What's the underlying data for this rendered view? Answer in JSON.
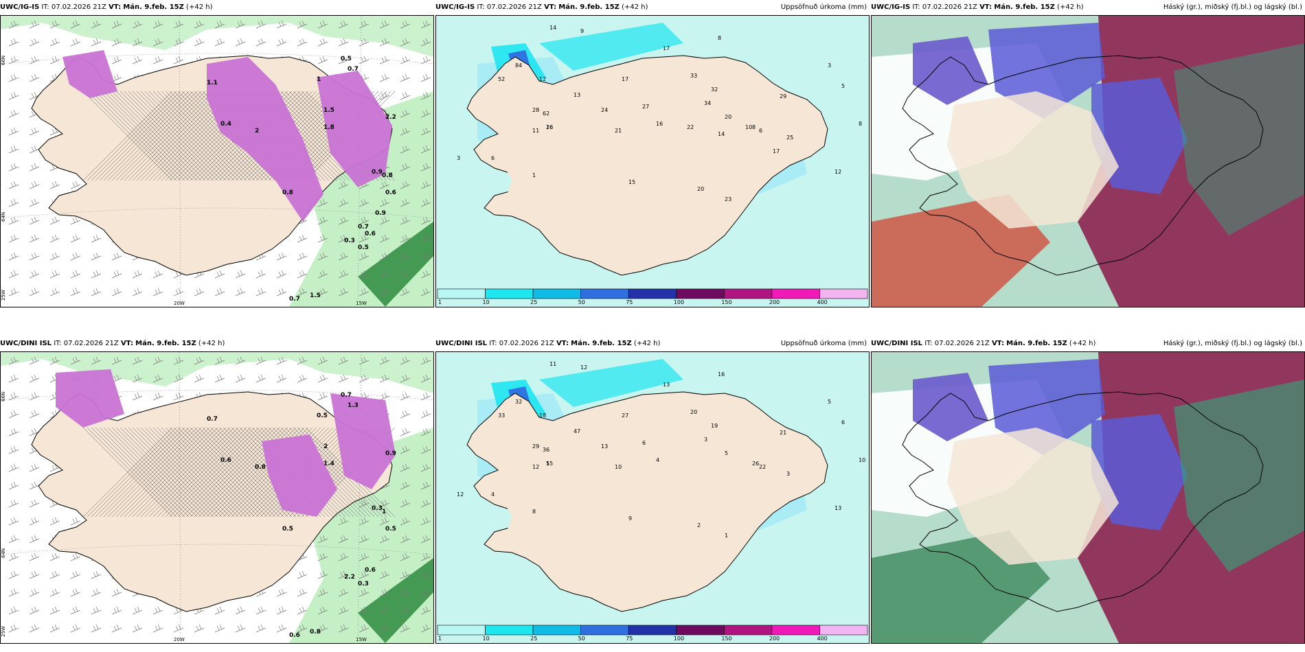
{
  "top": {
    "p1": {
      "model": "UWC/IG-IS",
      "it_label": "IT:",
      "it": "07.02.2026 21Z",
      "vt_label": "VT:",
      "vt": "Mán. 9.feb. 15Z",
      "lead": "(+42 h)",
      "values": [
        "0.5",
        "0.7",
        "1",
        "1.5",
        "1.8",
        "2.2",
        "0.7",
        "1.5",
        "0.9",
        "0.6",
        "0.3",
        "0.8",
        "1.1",
        "0.4",
        "2",
        "0.8",
        "0.6",
        "0.5",
        "0.9",
        "0.7"
      ]
    },
    "p2": {
      "model": "UWC/IG-IS",
      "it_label": "IT:",
      "it": "07.02.2026 21Z",
      "vt_label": "VT:",
      "vt": "Mán. 9.feb. 15Z",
      "lead": "(+42 h)",
      "right_title": "Uppsöfnuð úrkoma (mm)",
      "values": [
        "14",
        "9",
        "17",
        "8",
        "12",
        "17",
        "32",
        "3",
        "5",
        "52",
        "84",
        "62",
        "13",
        "28",
        "33",
        "29",
        "8",
        "26",
        "24",
        "27",
        "16",
        "34",
        "20",
        "8",
        "6",
        "3",
        "1",
        "15",
        "20",
        "23",
        "25",
        "12",
        "11",
        "21",
        "6",
        "16",
        "14",
        "10",
        "17",
        "22"
      ]
    },
    "p3": {
      "model": "UWC/IG-IS",
      "it_label": "IT:",
      "it": "07.02.2026 21Z",
      "vt_label": "VT:",
      "vt": "Mán. 9.feb. 15Z",
      "lead": "(+42 h)",
      "right_title": "Háský (gr.), miðský (fj.bl.) og lágský (bl.)"
    }
  },
  "bottom": {
    "p1": {
      "model": "UWC/DINI ISL",
      "it_label": "IT:",
      "it": "07.02.2026 21Z",
      "vt_label": "VT:",
      "vt": "Mán. 9.feb. 15Z",
      "lead": "(+42 h)",
      "values": [
        "0.7",
        "1.3",
        "0.5",
        "2",
        "1.4",
        "0.9",
        "0.6",
        "0.8",
        "0.3",
        "0.5",
        "2.2",
        "1",
        "0.7",
        "0.6",
        "0.8",
        "0.5",
        "0.6",
        "0.3"
      ]
    },
    "p2": {
      "model": "UWC/DINI ISL",
      "it_label": "IT:",
      "it": "07.02.2026 21Z",
      "vt_label": "VT:",
      "vt": "Mán. 9.feb. 15Z",
      "lead": "(+42 h)",
      "right_title": "Uppsöfnuð úrkoma (mm)",
      "values": [
        "11",
        "12",
        "13",
        "16",
        "18",
        "27",
        "19",
        "5",
        "6",
        "33",
        "32",
        "36",
        "47",
        "29",
        "20",
        "21",
        "10",
        "15",
        "13",
        "6",
        "4",
        "3",
        "5",
        "26",
        "22",
        "12",
        "8",
        "9",
        "2",
        "1",
        "3",
        "13",
        "12",
        "10",
        "4",
        "5"
      ]
    },
    "p3": {
      "model": "UWC/DINI ISL",
      "it_label": "IT:",
      "it": "07.02.2026 21Z",
      "vt_label": "VT:",
      "vt": "Mán. 9.feb. 15Z",
      "lead": "(+42 h)",
      "right_title": "Háský (gr.), miðský (fj.bl.) og lágský (bl.)"
    }
  },
  "axes": {
    "lat66": "66N",
    "lat64": "64N",
    "lon25": "25W",
    "lon20": "20W",
    "lon15": "15W"
  },
  "colorbar": {
    "labels": [
      "1",
      "10",
      "25",
      "50",
      "75",
      "100",
      "150",
      "200",
      "400"
    ],
    "colors": [
      "#b9f7f5",
      "#1de6ef",
      "#10bbe5",
      "#2f6fe0",
      "#2332a8",
      "#6e0b5f",
      "#b01480",
      "#f01ab8",
      "#f3b5f2"
    ]
  },
  "colors": {
    "land": "#f5e6d6",
    "precip_light": "#a9ecf5",
    "sea_light": "#c8f5f0",
    "green": "#bfeec0",
    "snow": "#c873d4"
  }
}
